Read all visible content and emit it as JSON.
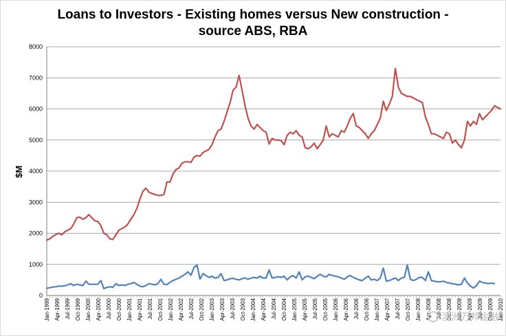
{
  "chart_data": {
    "type": "line",
    "title": "Loans to Investors - Existing homes versus New construction  -\nsource ABS, RBA",
    "ylabel": "$M",
    "xlabel": "",
    "ylim": [
      0,
      8000
    ],
    "yticks": [
      0,
      1000,
      2000,
      3000,
      4000,
      5000,
      6000,
      7000,
      8000
    ],
    "grid": "horizontal",
    "legend": "none",
    "x_tick_labels": [
      "Jan-1999",
      "Apr-1999",
      "Jul-1999",
      "Oct-1999",
      "Jan-2000",
      "Apr-2000",
      "Jul-2000",
      "Oct-2000",
      "Jan-2001",
      "Apr-2001",
      "Jul-2001",
      "Oct-2001",
      "Jan-2002",
      "Apr-2002",
      "Jul-2002",
      "Oct-2002",
      "Jan-2003",
      "Apr-2003",
      "Jul-2003",
      "Oct-2003",
      "Jan-2004",
      "Apr-2004",
      "Jul-2004",
      "Oct-2004",
      "Jan-2005",
      "Apr-2005",
      "Jul-2005",
      "Oct-2005",
      "Jan-2006",
      "Apr-2006",
      "Jul-2006",
      "Oct-2006",
      "Jan-2007",
      "Apr-2007",
      "Jul-2007",
      "Oct-2007",
      "Jan-2008",
      "Apr-2008",
      "Jul-2008",
      "Oct-2008",
      "Jan-2009",
      "Apr-2009",
      "Jul-2009",
      "Oct-2009",
      "Jan-2010"
    ],
    "series": [
      {
        "color": "#c0504d",
        "values": [
          1780,
          1820,
          1900,
          1960,
          2000,
          1950,
          2050,
          2100,
          2150,
          2300,
          2500,
          2520,
          2450,
          2500,
          2600,
          2500,
          2400,
          2380,
          2250,
          2000,
          1950,
          1820,
          1800,
          1950,
          2100,
          2150,
          2200,
          2300,
          2450,
          2600,
          2800,
          3100,
          3350,
          3450,
          3320,
          3280,
          3250,
          3220,
          3220,
          3250,
          3650,
          3650,
          3900,
          4050,
          4100,
          4250,
          4300,
          4300,
          4280,
          4450,
          4500,
          4480,
          4600,
          4650,
          4700,
          4850,
          5100,
          5300,
          5350,
          5600,
          5900,
          6200,
          6600,
          6700,
          7080,
          6600,
          6100,
          5700,
          5450,
          5350,
          5500,
          5400,
          5300,
          5250,
          4870,
          5050,
          5000,
          5000,
          4980,
          4850,
          5150,
          5250,
          5200,
          5300,
          5150,
          5100,
          4750,
          4720,
          4780,
          4900,
          4720,
          4850,
          5000,
          5450,
          5100,
          5200,
          5150,
          5100,
          5300,
          5250,
          5450,
          5700,
          5850,
          5450,
          5400,
          5300,
          5200,
          5050,
          5200,
          5300,
          5500,
          5700,
          6250,
          5950,
          6150,
          6400,
          7300,
          6700,
          6500,
          6450,
          6400,
          6400,
          6350,
          6300,
          6250,
          6200,
          5750,
          5500,
          5200,
          5200,
          5150,
          5100,
          5050,
          5250,
          5200,
          4900,
          5000,
          4850,
          4750,
          5000,
          5600,
          5450,
          5600,
          5500,
          5850,
          5650,
          5750,
          5850,
          5950,
          6100,
          6050,
          6000
        ]
      },
      {
        "color": "#4f81bd",
        "values": [
          230,
          250,
          270,
          280,
          300,
          300,
          310,
          340,
          380,
          320,
          360,
          340,
          320,
          460,
          360,
          360,
          360,
          360,
          480,
          220,
          260,
          280,
          260,
          380,
          320,
          340,
          320,
          360,
          380,
          420,
          360,
          300,
          280,
          320,
          380,
          360,
          340,
          380,
          520,
          360,
          350,
          420,
          480,
          520,
          560,
          620,
          680,
          760,
          650,
          900,
          980,
          530,
          700,
          640,
          580,
          620,
          560,
          580,
          700,
          480,
          500,
          540,
          550,
          520,
          500,
          540,
          560,
          520,
          560,
          580,
          560,
          620,
          560,
          560,
          820,
          560,
          580,
          600,
          580,
          620,
          500,
          600,
          640,
          560,
          760,
          500,
          600,
          620,
          580,
          540,
          620,
          680,
          620,
          600,
          680,
          640,
          620,
          600,
          560,
          520,
          600,
          640,
          580,
          540,
          500,
          480,
          560,
          620,
          500,
          520,
          480,
          560,
          880,
          460,
          480,
          520,
          560,
          480,
          560,
          580,
          980,
          520,
          480,
          520,
          580,
          580,
          480,
          760,
          480,
          460,
          440,
          440,
          460,
          420,
          400,
          380,
          360,
          340,
          360,
          560,
          400,
          300,
          240,
          320,
          460,
          420,
          400,
          380,
          400,
          380
        ]
      }
    ]
  },
  "watermark": {
    "text": "澳洲万邦金融"
  }
}
